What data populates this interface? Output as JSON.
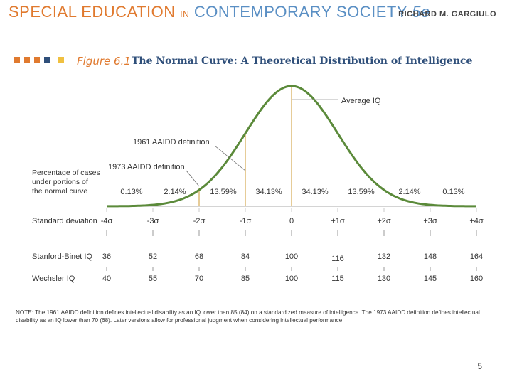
{
  "header": {
    "title_part1": "SPECIAL EDUCATION",
    "title_in": "IN",
    "title_part2": "CONTEMPORARY SOCIETY",
    "title_edition": "5e",
    "author": "RICHARD M. GARGIULO"
  },
  "figure": {
    "label": "Figure 6.1",
    "title": "The Normal Curve: A Theoretical Distribution of Intelligence",
    "square_colors": [
      "#e07a2f",
      "#e07a2f",
      "#e07a2f",
      "#2f4f7a",
      "#f0c040"
    ]
  },
  "chart_data": {
    "type": "line",
    "title": "The Normal Curve: A Theoretical Distribution of Intelligence",
    "curve_color": "#5b8a3a",
    "line_color": "#d8b060",
    "x_range": [
      -4,
      4
    ],
    "annotations": [
      "Average IQ",
      "1961 AAIDD definition",
      "1973 AAIDD definition"
    ],
    "percent_label": [
      "Percentage of cases",
      "under portions of",
      "the normal curve"
    ],
    "percentages": [
      "0.13%",
      "2.14%",
      "13.59%",
      "34.13%",
      "34.13%",
      "13.59%",
      "2.14%",
      "0.13%"
    ],
    "rows": [
      {
        "label": "Standard deviation",
        "values": [
          "-4σ",
          "-3σ",
          "-2σ",
          "-1σ",
          "0",
          "+1σ",
          "+2σ",
          "+3σ",
          "+4σ"
        ]
      },
      {
        "label": "Stanford-Binet IQ",
        "values": [
          "36",
          "52",
          "68",
          "84",
          "100",
          "116",
          "132",
          "148",
          "164"
        ]
      },
      {
        "label": "Wechsler IQ",
        "values": [
          "40",
          "55",
          "70",
          "85",
          "100",
          "115",
          "130",
          "145",
          "160"
        ]
      }
    ]
  },
  "note": "NOTE: The 1961 AAIDD definition defines intellectual disability as an IQ lower than 85 (84) on a standardized measure of intelligence. The 1973 AAIDD definition defines intellectual disability as an IQ lower than 70 (68). Later versions allow for professional judgment when considering intellectual performance.",
  "page_number": "5"
}
